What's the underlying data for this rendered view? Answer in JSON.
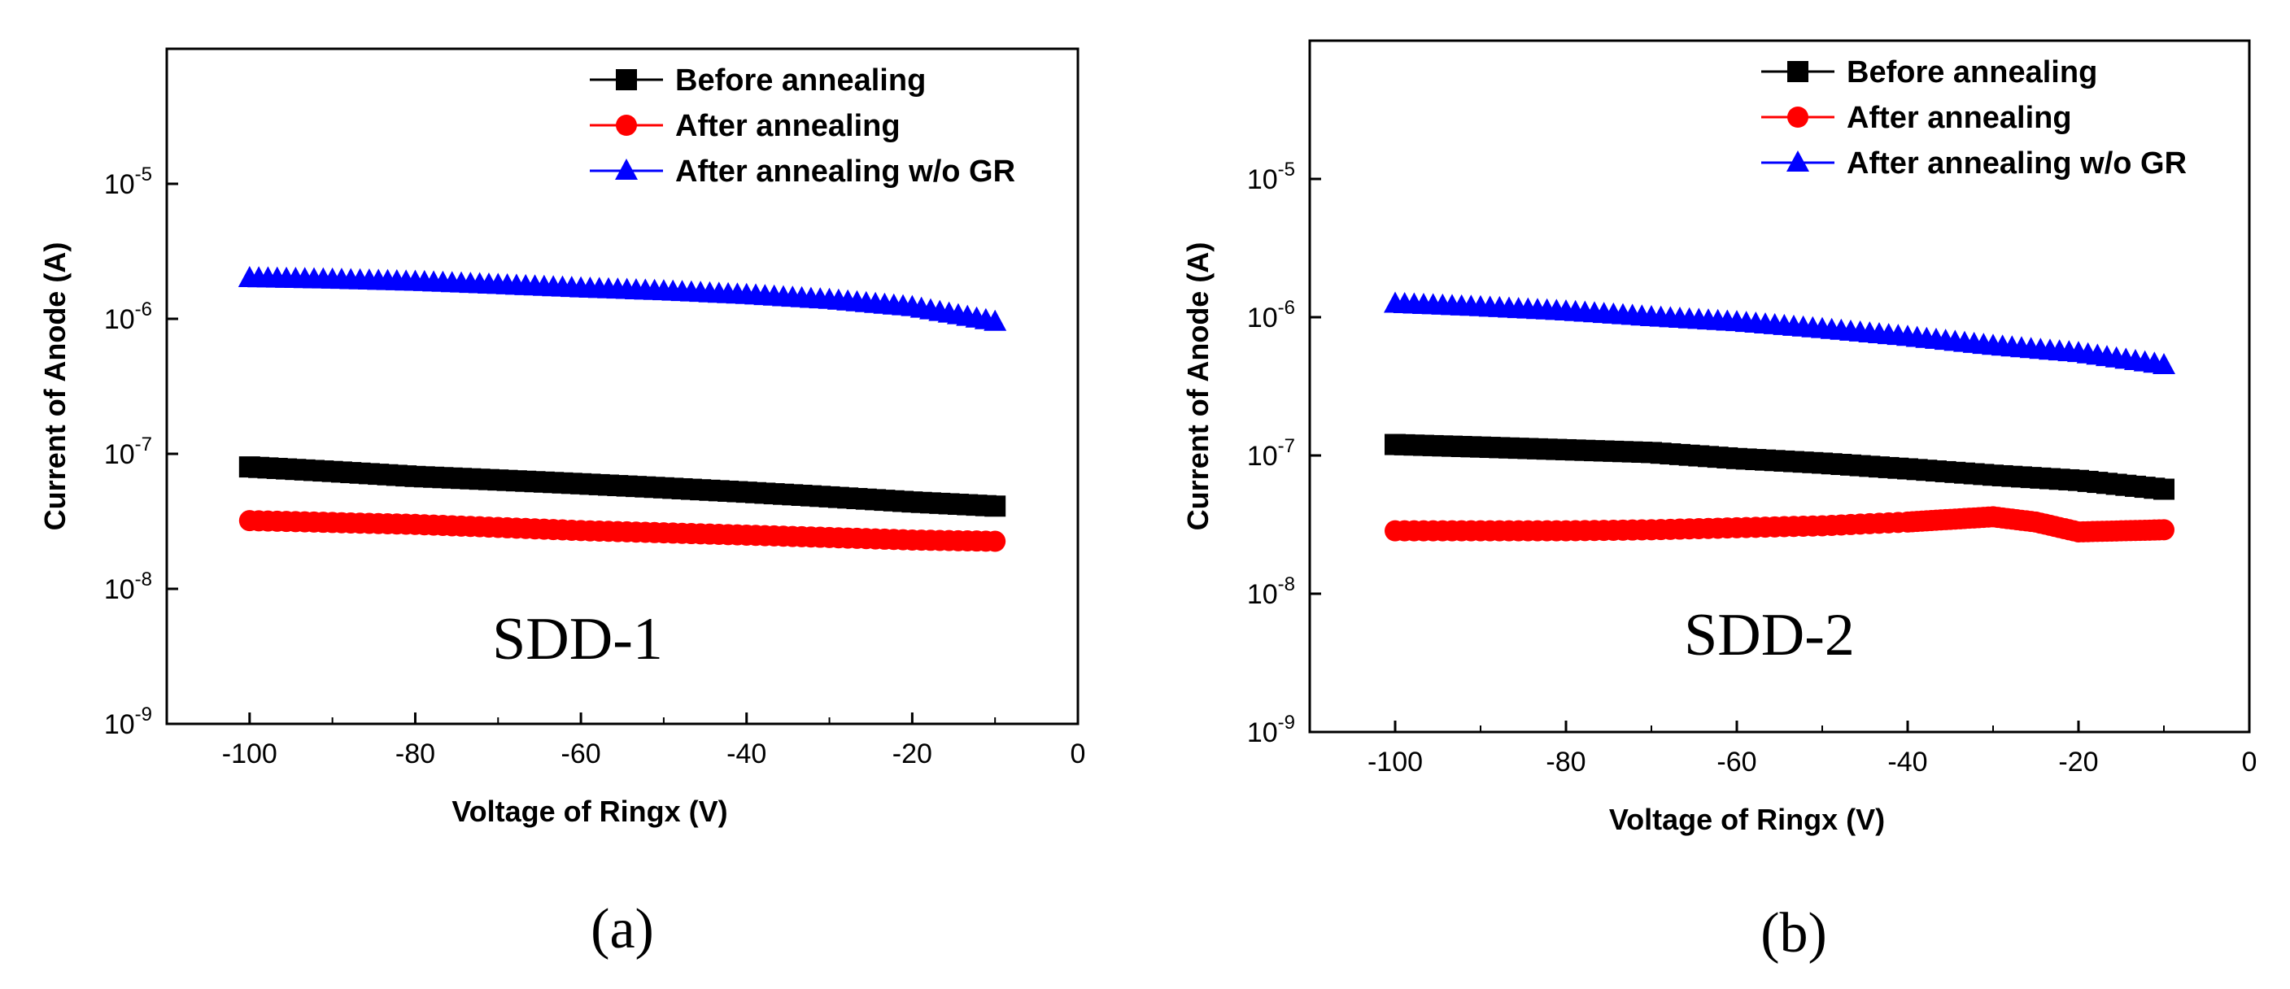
{
  "chart_data": [
    {
      "type": "scatter",
      "annotation": "SDD-1",
      "caption": "(a)",
      "xlabel": "Voltage of Ringx (V)",
      "ylabel": "Current of Anode (A)",
      "xlim": [
        -110,
        0
      ],
      "ylim": [
        1e-09,
        0.0001
      ],
      "yscale": "log",
      "x_ticks": [
        -100,
        -80,
        -60,
        -40,
        -20,
        0
      ],
      "y_ticks": [
        {
          "value": 1e-09,
          "base": "10",
          "exp": "-9"
        },
        {
          "value": 1e-08,
          "base": "10",
          "exp": "-8"
        },
        {
          "value": 1e-07,
          "base": "10",
          "exp": "-7"
        },
        {
          "value": 1e-06,
          "base": "10",
          "exp": "-6"
        },
        {
          "value": 1e-05,
          "base": "10",
          "exp": "-5"
        }
      ],
      "legend_position": "top-right",
      "series": [
        {
          "name": "Before annealing",
          "color": "#000000",
          "marker": "square",
          "x": [
            -100,
            -90,
            -80,
            -70,
            -60,
            -50,
            -40,
            -30,
            -20,
            -10
          ],
          "y": [
            8e-08,
            7.4e-08,
            6.8e-08,
            6.4e-08,
            6e-08,
            5.6e-08,
            5.2e-08,
            4.8e-08,
            4.4e-08,
            4.1e-08
          ]
        },
        {
          "name": "After annealing",
          "color": "#ff0000",
          "marker": "circle",
          "x": [
            -100,
            -90,
            -80,
            -70,
            -60,
            -50,
            -40,
            -30,
            -20,
            -10
          ],
          "y": [
            3.2e-08,
            3.1e-08,
            3e-08,
            2.85e-08,
            2.7e-08,
            2.6e-08,
            2.5e-08,
            2.4e-08,
            2.3e-08,
            2.25e-08
          ]
        },
        {
          "name": "After annealing w/o GR",
          "color": "#0000ff",
          "marker": "triangle",
          "x": [
            -100,
            -90,
            -80,
            -70,
            -60,
            -50,
            -40,
            -30,
            -20,
            -10
          ],
          "y": [
            2e-06,
            1.95e-06,
            1.88e-06,
            1.78e-06,
            1.68e-06,
            1.6e-06,
            1.5e-06,
            1.38e-06,
            1.22e-06,
            9.5e-07
          ]
        }
      ]
    },
    {
      "type": "scatter",
      "annotation": "SDD-2",
      "caption": "(b)",
      "xlabel": "Voltage of Ringx (V)",
      "ylabel": "Current of Anode (A)",
      "xlim": [
        -110,
        0
      ],
      "ylim": [
        1e-09,
        0.0001
      ],
      "yscale": "log",
      "x_ticks": [
        -100,
        -80,
        -60,
        -40,
        -20,
        0
      ],
      "y_ticks": [
        {
          "value": 1e-09,
          "base": "10",
          "exp": "-9"
        },
        {
          "value": 1e-08,
          "base": "10",
          "exp": "-8"
        },
        {
          "value": 1e-07,
          "base": "10",
          "exp": "-7"
        },
        {
          "value": 1e-06,
          "base": "10",
          "exp": "-6"
        },
        {
          "value": 1e-05,
          "base": "10",
          "exp": "-5"
        }
      ],
      "legend_position": "top-right",
      "series": [
        {
          "name": "Before annealing",
          "color": "#000000",
          "marker": "square",
          "x": [
            -100,
            -90,
            -80,
            -70,
            -60,
            -50,
            -40,
            -30,
            -20,
            -10
          ],
          "y": [
            1.2e-07,
            1.15e-07,
            1.1e-07,
            1.05e-07,
            9.5e-08,
            8.8e-08,
            8e-08,
            7.2e-08,
            6.6e-08,
            5.7e-08
          ]
        },
        {
          "name": "After annealing",
          "color": "#ff0000",
          "marker": "circle",
          "x": [
            -100,
            -90,
            -80,
            -70,
            -60,
            -50,
            -40,
            -35,
            -30,
            -25,
            -20,
            -15,
            -10
          ],
          "y": [
            2.85e-08,
            2.85e-08,
            2.85e-08,
            2.9e-08,
            3e-08,
            3.1e-08,
            3.3e-08,
            3.45e-08,
            3.6e-08,
            3.3e-08,
            2.8e-08,
            2.85e-08,
            2.9e-08
          ]
        },
        {
          "name": "After annealing w/o GR",
          "color": "#0000ff",
          "marker": "triangle",
          "x": [
            -100,
            -90,
            -80,
            -70,
            -60,
            -50,
            -40,
            -30,
            -20,
            -10
          ],
          "y": [
            1.25e-06,
            1.18e-06,
            1.1e-06,
            1e-06,
            9.2e-07,
            8.2e-07,
            7.2e-07,
            6.2e-07,
            5.5e-07,
            4.5e-07
          ]
        }
      ]
    }
  ]
}
